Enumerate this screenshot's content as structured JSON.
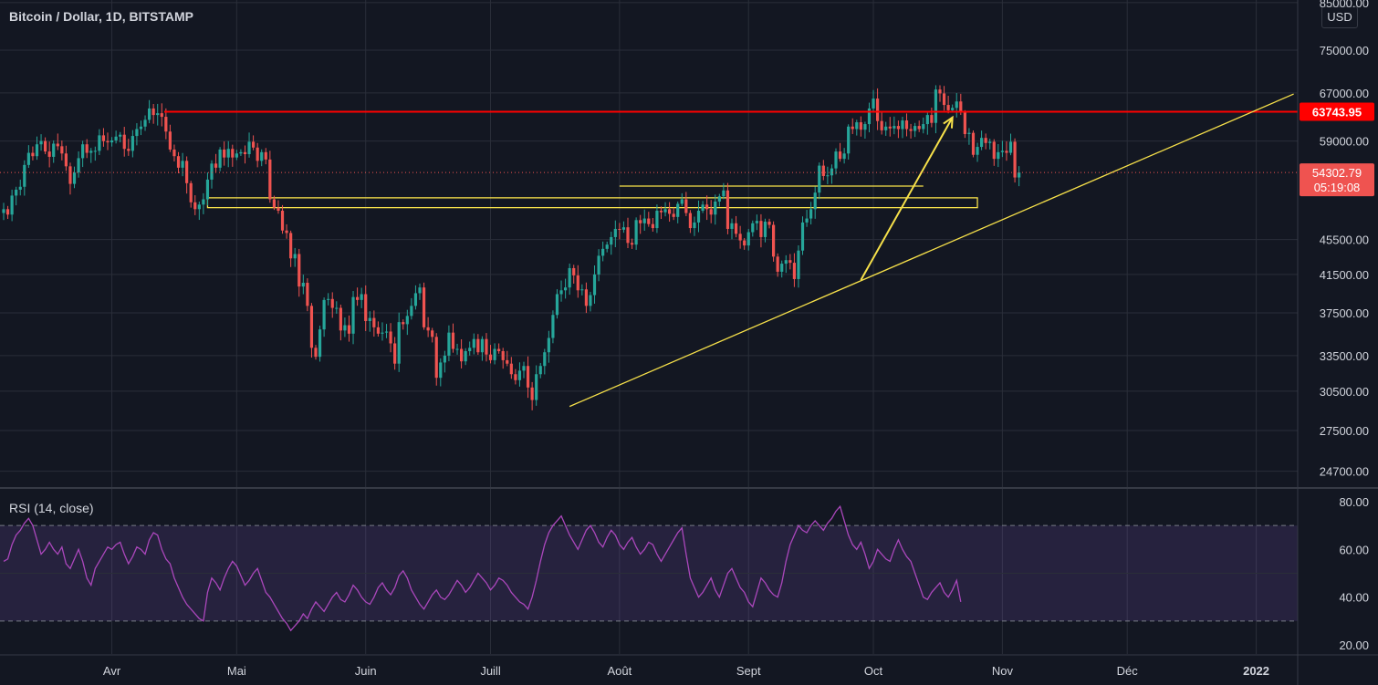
{
  "header": {
    "title": "Bitcoin / Dollar, 1D, BITSTAMP",
    "currency_button": "USD"
  },
  "rsi": {
    "title": "RSI (14, close)",
    "ticks": [
      "80.00",
      "60.00",
      "40.00",
      "20.00"
    ],
    "upper_band": 70,
    "lower_band": 30,
    "values": [
      55,
      56,
      62,
      66,
      68,
      71,
      73,
      70,
      64,
      58,
      60,
      63,
      60,
      58,
      61,
      54,
      52,
      56,
      60,
      55,
      48,
      45,
      52,
      55,
      58,
      61,
      60,
      62,
      63,
      58,
      54,
      57,
      61,
      60,
      58,
      64,
      67,
      66,
      60,
      56,
      54,
      48,
      44,
      40,
      37,
      35,
      33,
      31,
      30,
      42,
      48,
      46,
      43,
      48,
      52,
      55,
      53,
      49,
      45,
      47,
      50,
      52,
      47,
      42,
      40,
      37,
      34,
      31,
      29,
      26,
      28,
      30,
      33,
      31,
      35,
      38,
      36,
      34,
      37,
      40,
      42,
      39,
      38,
      41,
      45,
      43,
      40,
      38,
      37,
      40,
      44,
      46,
      43,
      41,
      44,
      49,
      51,
      48,
      43,
      40,
      37,
      35,
      38,
      41,
      43,
      40,
      39,
      41,
      44,
      47,
      45,
      42,
      44,
      47,
      50,
      48,
      46,
      43,
      45,
      48,
      47,
      45,
      42,
      40,
      38,
      37,
      35,
      40,
      47,
      55,
      62,
      67,
      70,
      72,
      74,
      70,
      66,
      63,
      60,
      64,
      68,
      70,
      67,
      63,
      61,
      65,
      68,
      66,
      62,
      60,
      63,
      65,
      61,
      58,
      60,
      63,
      62,
      58,
      55,
      58,
      61,
      64,
      67,
      69,
      58,
      48,
      44,
      40,
      42,
      45,
      48,
      43,
      40,
      45,
      50,
      52,
      48,
      44,
      42,
      38,
      36,
      42,
      48,
      46,
      43,
      41,
      40,
      46,
      55,
      62,
      66,
      70,
      68,
      67,
      70,
      72,
      70,
      68,
      71,
      73,
      76,
      78,
      72,
      66,
      62,
      60,
      63,
      58,
      52,
      55,
      60,
      58,
      56,
      55,
      60,
      64,
      60,
      57,
      55,
      50,
      45,
      40,
      39,
      42,
      44,
      46,
      42,
      40,
      43,
      47,
      38
    ]
  },
  "chart_data": {
    "type": "candlestick",
    "title": "Bitcoin / Dollar, 1D, BITSTAMP",
    "x_axis_labels": [
      "Avr",
      "Mai",
      "Juin",
      "Juill",
      "Août",
      "Sept",
      "Oct",
      "Nov",
      "Déc",
      "2022"
    ],
    "y_ticks": [
      "85000.00",
      "75000.00",
      "67000.00",
      "59000.00",
      "45500.00",
      "41500.00",
      "37500.00",
      "33500.00",
      "30500.00",
      "27500.00",
      "24700.00"
    ],
    "ylim": [
      23800,
      85600
    ],
    "scale": "log",
    "last_price": "54302.79",
    "countdown": "05:19:08",
    "resistance_level": "63743.95",
    "support_zones": [
      {
        "from_date": "2021-04-24",
        "to_date": "2021-10-26",
        "low": 49500,
        "high": 50800
      },
      {
        "from_date": "2021-08-01",
        "to_date": "2021-10-13",
        "low": 52400,
        "high": 52400
      }
    ],
    "trendline": {
      "from_date": "2021-07-20",
      "from_price": 29300,
      "to_date": "2022-01-10",
      "to_price": 66800
    },
    "arrow": {
      "from_date": "2021-09-28",
      "from_price": 40900,
      "to_date": "2021-10-20",
      "to_price": 62800
    },
    "ohlc_start_date": "2021-03-06",
    "closes": [
      49300,
      48600,
      51100,
      51900,
      52300,
      55400,
      57200,
      56700,
      58500,
      59000,
      57400,
      56600,
      58600,
      58200,
      57100,
      55200,
      52700,
      54300,
      56400,
      58500,
      57200,
      57500,
      57500,
      59900,
      59000,
      58800,
      59100,
      59700,
      60000,
      57800,
      57500,
      59800,
      60900,
      61300,
      62400,
      64300,
      63200,
      63500,
      62900,
      60500,
      57700,
      56700,
      55000,
      56000,
      52800,
      50200,
      49300,
      49900,
      50600,
      53300,
      55600,
      55000,
      57700,
      56500,
      57800,
      56500,
      57100,
      57300,
      57000,
      58900,
      58000,
      56000,
      57300,
      56200,
      50600,
      49500,
      49100,
      46600,
      46300,
      43300,
      43800,
      40200,
      40600,
      38200,
      34200,
      33400,
      35900,
      38800,
      38900,
      38000,
      38000,
      35800,
      36300,
      35500,
      39100,
      38800,
      39400,
      36700,
      37000,
      36100,
      35500,
      35600,
      35700,
      34600,
      32800,
      36600,
      36400,
      37200,
      38200,
      39500,
      40100,
      36100,
      35800,
      35200,
      31600,
      32900,
      33500,
      35600,
      34100,
      34100,
      33000,
      33900,
      34200,
      35000,
      33800,
      35000,
      33600,
      33100,
      34100,
      33900,
      33100,
      32800,
      31900,
      31400,
      32200,
      32600,
      30800,
      29800,
      31900,
      32600,
      33800,
      35100,
      37300,
      39400,
      39800,
      40100,
      42200,
      41400,
      39800,
      39900,
      38200,
      39300,
      41500,
      43600,
      44400,
      44900,
      45800,
      46800,
      46700,
      47000,
      45100,
      44900,
      47900,
      47500,
      48100,
      47400,
      46900,
      49100,
      48900,
      49300,
      48700,
      48300,
      50000,
      50600,
      48800,
      46900,
      47600,
      49100,
      49900,
      49300,
      48600,
      50300,
      51000,
      51800,
      46800,
      47500,
      46200,
      45400,
      44800,
      46400,
      47500,
      47800,
      45800,
      47700,
      47300,
      43500,
      41800,
      42700,
      43100,
      42800,
      41000,
      44200,
      47600,
      48100,
      49300,
      51500,
      55300,
      53800,
      53900,
      54900,
      57400,
      56300,
      57100,
      61300,
      60900,
      62000,
      60800,
      61700,
      64300,
      66000,
      62200,
      60700,
      61300,
      61000,
      61400,
      60900,
      62300,
      60900,
      60600,
      61400,
      60900,
      61700,
      63200,
      61900,
      67600,
      66900,
      64900,
      64000,
      64400,
      65500,
      63600,
      60100,
      60300,
      56900,
      58100,
      59500,
      58700,
      58900,
      56300,
      57300,
      57500,
      57200,
      58900,
      53600,
      54300
    ]
  }
}
